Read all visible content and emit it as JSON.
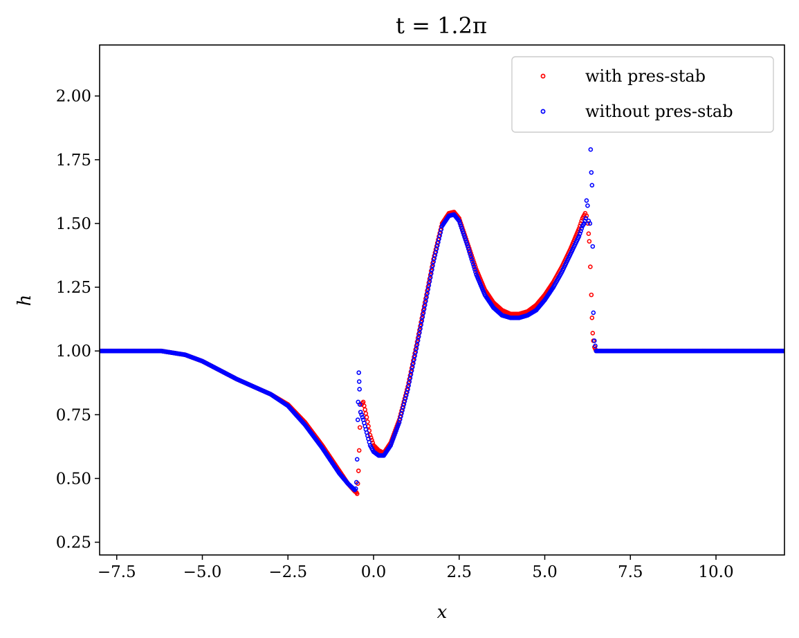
{
  "chart_data": {
    "type": "scatter",
    "title": "t = 1.2π",
    "xlabel": "x",
    "ylabel": "h",
    "xlim": [
      -8,
      12
    ],
    "ylim": [
      0.2,
      2.2
    ],
    "xticks": [
      -7.5,
      -5.0,
      -2.5,
      0.0,
      2.5,
      5.0,
      7.5,
      10.0
    ],
    "xtick_labels": [
      "−7.5",
      "−5.0",
      "−2.5",
      "0.0",
      "2.5",
      "5.0",
      "7.5",
      "10.0"
    ],
    "yticks": [
      0.25,
      0.5,
      0.75,
      1.0,
      1.25,
      1.5,
      1.75,
      2.0
    ],
    "ytick_labels": [
      "0.25",
      "0.50",
      "0.75",
      "1.00",
      "1.25",
      "1.50",
      "1.75",
      "2.00"
    ],
    "grid": false,
    "legend_position": "top-right",
    "series": [
      {
        "name": "with pres-stab",
        "color": "#ff0000",
        "marker": "open-circle",
        "x": [
          -8.0,
          -7.0,
          -6.2,
          -5.5,
          -5.0,
          -4.5,
          -4.0,
          -3.5,
          -3.0,
          -2.5,
          -2.0,
          -1.5,
          -1.0,
          -0.75,
          -0.55,
          -0.5,
          -0.48,
          -0.46,
          -0.44,
          -0.42,
          -0.4,
          -0.38,
          -0.35,
          -0.3,
          -0.2,
          -0.1,
          0.0,
          0.15,
          0.3,
          0.5,
          0.75,
          1.0,
          1.25,
          1.5,
          1.75,
          2.0,
          2.2,
          2.35,
          2.5,
          2.75,
          3.0,
          3.25,
          3.5,
          3.75,
          4.0,
          4.25,
          4.5,
          4.75,
          5.0,
          5.25,
          5.5,
          5.75,
          6.0,
          6.1,
          6.18,
          6.22,
          6.26,
          6.28,
          6.3,
          6.33,
          6.36,
          6.38,
          6.4,
          6.42,
          6.45,
          6.5,
          7.0,
          8.0,
          9.0,
          10.0,
          11.0,
          12.0
        ],
        "y": [
          1.0,
          1.0,
          1.0,
          0.985,
          0.96,
          0.925,
          0.89,
          0.86,
          0.83,
          0.79,
          0.72,
          0.63,
          0.53,
          0.48,
          0.45,
          0.445,
          0.44,
          0.48,
          0.53,
          0.61,
          0.7,
          0.76,
          0.79,
          0.8,
          0.74,
          0.67,
          0.63,
          0.61,
          0.6,
          0.64,
          0.73,
          0.86,
          1.02,
          1.19,
          1.36,
          1.5,
          1.54,
          1.545,
          1.52,
          1.42,
          1.32,
          1.24,
          1.19,
          1.16,
          1.145,
          1.145,
          1.155,
          1.18,
          1.22,
          1.27,
          1.33,
          1.4,
          1.48,
          1.52,
          1.54,
          1.53,
          1.5,
          1.46,
          1.43,
          1.33,
          1.22,
          1.13,
          1.07,
          1.04,
          1.015,
          1.0,
          1.0,
          1.0,
          1.0,
          1.0,
          1.0,
          1.0
        ]
      },
      {
        "name": "without pres-stab",
        "color": "#0000ff",
        "marker": "open-circle",
        "x": [
          -8.0,
          -7.0,
          -6.2,
          -5.5,
          -5.0,
          -4.5,
          -4.0,
          -3.5,
          -3.0,
          -2.5,
          -2.0,
          -1.5,
          -1.0,
          -0.75,
          -0.55,
          -0.52,
          -0.5,
          -0.48,
          -0.46,
          -0.45,
          -0.43,
          -0.42,
          -0.41,
          -0.4,
          -0.38,
          -0.35,
          -0.3,
          -0.2,
          -0.1,
          0.0,
          0.15,
          0.3,
          0.5,
          0.75,
          1.0,
          1.25,
          1.5,
          1.75,
          2.0,
          2.2,
          2.35,
          2.5,
          2.75,
          3.0,
          3.25,
          3.5,
          3.75,
          4.0,
          4.25,
          4.5,
          4.75,
          5.0,
          5.25,
          5.5,
          5.75,
          6.0,
          6.1,
          6.15,
          6.2,
          6.22,
          6.25,
          6.28,
          6.32,
          6.34,
          6.36,
          6.38,
          6.4,
          6.42,
          6.45,
          6.5,
          7.0,
          8.0,
          9.0,
          10.0,
          11.0,
          12.0
        ],
        "y": [
          1.0,
          1.0,
          1.0,
          0.985,
          0.96,
          0.925,
          0.89,
          0.86,
          0.83,
          0.785,
          0.71,
          0.62,
          0.52,
          0.48,
          0.455,
          0.46,
          0.485,
          0.575,
          0.73,
          0.8,
          0.915,
          0.88,
          0.85,
          0.79,
          0.76,
          0.75,
          0.73,
          0.68,
          0.63,
          0.605,
          0.59,
          0.59,
          0.63,
          0.72,
          0.85,
          1.01,
          1.18,
          1.35,
          1.49,
          1.53,
          1.535,
          1.51,
          1.41,
          1.3,
          1.22,
          1.17,
          1.14,
          1.13,
          1.13,
          1.14,
          1.16,
          1.2,
          1.25,
          1.31,
          1.38,
          1.45,
          1.49,
          1.5,
          1.52,
          1.59,
          1.57,
          1.51,
          1.5,
          1.79,
          1.7,
          1.65,
          1.41,
          1.15,
          1.04,
          1.0,
          1.0,
          1.0,
          1.0,
          1.0,
          1.0,
          1.0
        ]
      }
    ]
  }
}
